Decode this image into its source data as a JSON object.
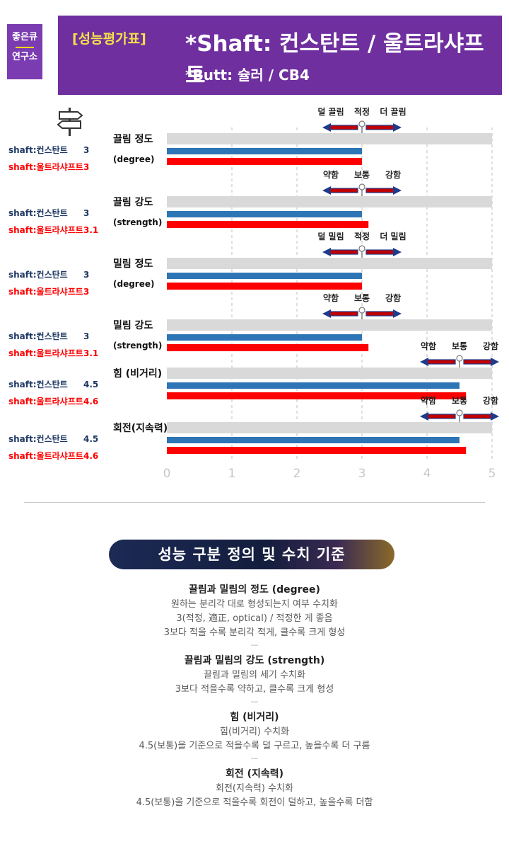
{
  "logo": {
    "line1": "좋은큐",
    "line2": "연구소"
  },
  "header": {
    "tag": "[성능평가표]",
    "shaft_line": "*Shaft: 컨스탄트 / 울트라샤프트",
    "butt_line": "*Butt: 슐러 / CB4"
  },
  "colors": {
    "series1": "#2e75b6",
    "series2": "#ff0000",
    "track": "#d9d9d9",
    "arrow": "#c00000"
  },
  "chart_data": {
    "type": "bar",
    "orientation": "horizontal",
    "xlim": [
      0,
      5
    ],
    "xticks": [
      "0",
      "1",
      "2",
      "3",
      "4",
      "5"
    ],
    "categories": [
      {
        "name": "끌림 정도",
        "sub": "(degree)",
        "scale": [
          "덜 끌림",
          "적정",
          "더 끌림"
        ],
        "scale_at": 3,
        "v1": 3,
        "v2": 3,
        "l1": "shaft:컨스탄트",
        "n1": "3",
        "l2": "shaft:울트라샤프트",
        "n2": "3"
      },
      {
        "name": "끌림 강도",
        "sub": "(strength)",
        "scale": [
          "약함",
          "보통",
          "강함"
        ],
        "scale_at": 3,
        "v1": 3,
        "v2": 3.1,
        "l1": "shaft:컨스탄트",
        "n1": "3",
        "l2": "shaft:울트라샤프트",
        "n2": "3.1"
      },
      {
        "name": "밀림 정도",
        "sub": "(degree)",
        "scale": [
          "덜 밀림",
          "적정",
          "더 밀림"
        ],
        "scale_at": 3,
        "v1": 3,
        "v2": 3,
        "l1": "shaft:컨스탄트",
        "n1": "3",
        "l2": "shaft:울트라샤프트",
        "n2": "3"
      },
      {
        "name": "밀림 강도",
        "sub": "(strength)",
        "scale": [
          "약함",
          "보통",
          "강함"
        ],
        "scale_at": 3,
        "v1": 3,
        "v2": 3.1,
        "l1": "shaft:컨스탄트",
        "n1": "3",
        "l2": "shaft:울트라샤프트",
        "n2": "3.1"
      },
      {
        "name": "힘 (비거리)",
        "sub": "",
        "scale": [
          "약함",
          "보통",
          "강함"
        ],
        "scale_at": 4.5,
        "v1": 4.5,
        "v2": 4.6,
        "l1": "shaft:컨스탄트",
        "n1": "4.5",
        "l2": "shaft:울트라샤프트",
        "n2": "4.6"
      },
      {
        "name": "회전(지속력)",
        "sub": "",
        "scale": [
          "약함",
          "보통",
          "강함"
        ],
        "scale_at": 4.5,
        "v1": 4.5,
        "v2": 4.6,
        "l1": "shaft:컨스탄트",
        "n1": "4.5",
        "l2": "shaft:울트라샤프트",
        "n2": "4.6"
      }
    ]
  },
  "definitions": {
    "title": "성능 구분 정의 및 수치 기준",
    "sections": [
      {
        "heading": "끌림과 밀림의 정도 (degree)",
        "lines": [
          "원하는 분리각 대로 형성되는지 여부 수치화",
          "3(적정, 適正, optical) / 적정한 게 좋음",
          "3보다 적을 수록 분리각 적게, 클수록 크게 형성"
        ]
      },
      {
        "heading": "끌림과 밀림의 강도 (strength)",
        "lines": [
          "끌림과 밀림의 세기 수치화",
          "3보다 적을수록 약하고, 클수록 크게 형성"
        ]
      },
      {
        "heading": "힘 (비거리)",
        "lines": [
          "힘(비거리) 수치화",
          "4.5(보통)을 기준으로 적을수록 덜 구르고, 높을수록 더 구름"
        ]
      },
      {
        "heading": "회전 (지속력)",
        "lines": [
          "회전(지속력) 수치화",
          "4.5(보통)을 기준으로 적을수록 회전이 덜하고, 높을수록 더함"
        ]
      }
    ]
  }
}
